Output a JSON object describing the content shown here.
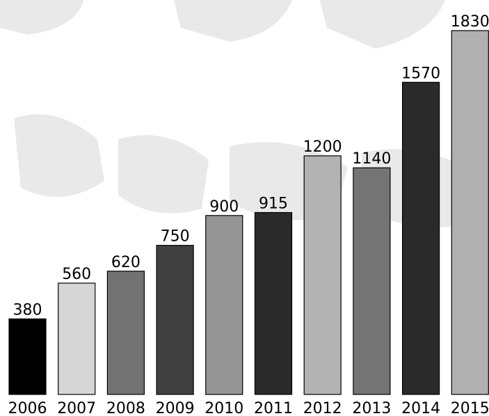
{
  "chart_data": {
    "type": "bar",
    "categories": [
      "2006",
      "2007",
      "2008",
      "2009",
      "2010",
      "2011",
      "2012",
      "2013",
      "2014",
      "2015"
    ],
    "values": [
      380,
      560,
      620,
      750,
      900,
      915,
      1200,
      1140,
      1570,
      1830
    ],
    "bar_colors": [
      "#000000",
      "#d6d6d6",
      "#727272",
      "#404040",
      "#959595",
      "#2a2a2a",
      "#b3b3b3",
      "#747474",
      "#2a2a2a",
      "#b0b0b0"
    ],
    "title": "",
    "xlabel": "",
    "ylabel": "",
    "ylim": [
      0,
      1830
    ],
    "grid": false,
    "legend": "none",
    "data_labels": true
  },
  "watermark": {
    "text": "Nordecaso"
  }
}
